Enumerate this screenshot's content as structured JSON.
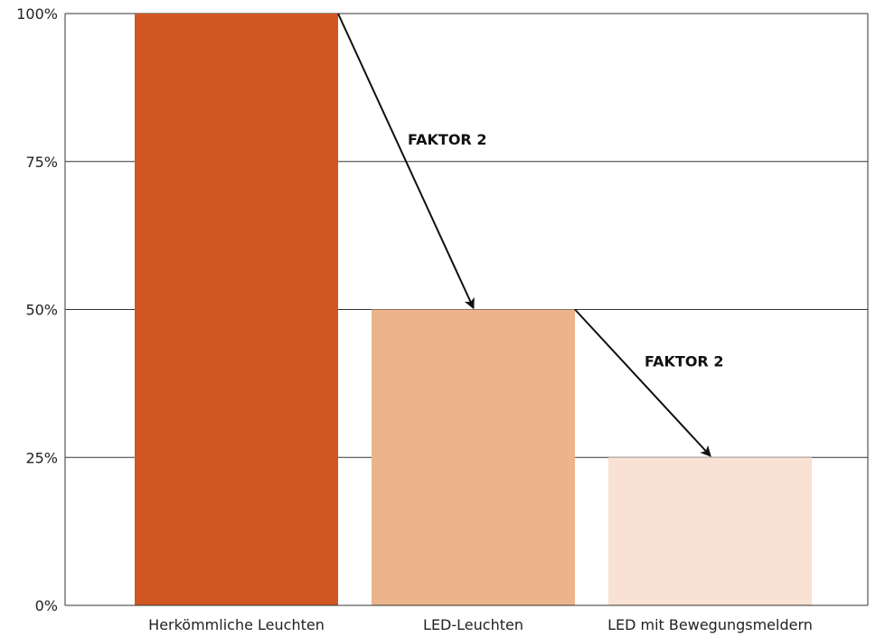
{
  "chart_data": {
    "type": "bar",
    "categories": [
      "Herkömmliche Leuchten",
      "LED-Leuchten",
      "LED mit Bewegungsmeldern"
    ],
    "values": [
      100,
      50,
      25
    ],
    "bar_colors": [
      "#d05622",
      "#ecb48b",
      "#f9e2d3"
    ],
    "ylim": [
      0,
      100
    ],
    "yticks": [
      0,
      25,
      50,
      75,
      100
    ],
    "ytick_labels": [
      "0%",
      "25%",
      "50%",
      "75%",
      "100%"
    ],
    "grid": true,
    "annotations": [
      {
        "text": "FAKTOR 2",
        "from_index": 0,
        "to_index": 1
      },
      {
        "text": "FAKTOR 2",
        "from_index": 1,
        "to_index": 2
      }
    ]
  }
}
